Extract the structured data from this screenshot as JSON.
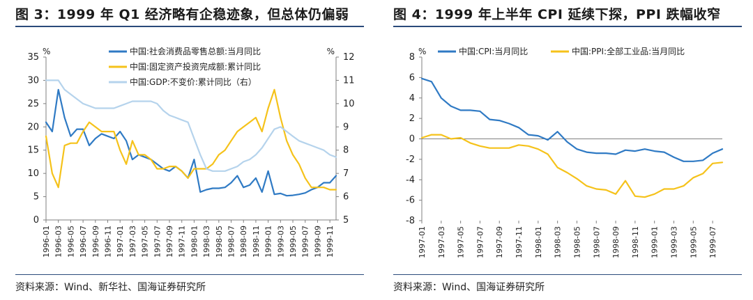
{
  "figures": {
    "left_title": "图 3：1999 年 Q1 经济略有企稳迹象，但总体仍偏弱",
    "right_title": "图 4：1999 年上半年 CPI 延续下探，PPI 跌幅收窄",
    "left_source": "资料来源：Wind、新华社、国海证券研究所",
    "right_source": "资料来源：Wind、国海证券研究所"
  },
  "colors": {
    "blue": "#2f7ac4",
    "yellow": "#f5c21a",
    "lightblue": "#b5d3ec",
    "axis": "#7f7f7f"
  },
  "chart_data": [
    {
      "type": "line",
      "title": "图 3：1999 年 Q1 经济略有企稳迹象，但总体仍偏弱",
      "xlabel": "",
      "y_unit_label": "%",
      "y2_unit_label": "%",
      "ylim": [
        0,
        35
      ],
      "yticks": [
        0,
        5,
        10,
        15,
        20,
        25,
        30,
        35
      ],
      "y2lim": [
        5,
        12
      ],
      "y2ticks": [
        5,
        6,
        7,
        8,
        9,
        10,
        11,
        12
      ],
      "x_range": [
        "1996-01",
        "1999-12"
      ],
      "x_ticks": [
        "1996-01",
        "1996-03",
        "1996-05",
        "1996-07",
        "1996-09",
        "1996-11",
        "1997-01",
        "1997-03",
        "1997-05",
        "1997-07",
        "1997-09",
        "1997-11",
        "1998-01",
        "1998-03",
        "1998-05",
        "1998-07",
        "1998-09",
        "1998-11",
        "1999-01",
        "1999-03",
        "1999-05",
        "1999-07",
        "1999-09",
        "1999-11"
      ],
      "legend_position": "top-left",
      "series": [
        {
          "name": "中国:社会消费品零售总额:当月同比",
          "axis": "left",
          "color": "#2f7ac4",
          "points": [
            [
              "1996-01",
              21
            ],
            [
              "1996-02",
              19
            ],
            [
              "1996-03",
              28
            ],
            [
              "1996-04",
              22
            ],
            [
              "1996-05",
              18
            ],
            [
              "1996-06",
              19.5
            ],
            [
              "1996-07",
              19.5
            ],
            [
              "1996-08",
              16
            ],
            [
              "1996-09",
              17.5
            ],
            [
              "1996-10",
              18.5
            ],
            [
              "1996-11",
              18
            ],
            [
              "1996-12",
              17.5
            ],
            [
              "1997-01",
              19
            ],
            [
              "1997-02",
              17
            ],
            [
              "1997-03",
              13
            ],
            [
              "1997-04",
              14
            ],
            [
              "1997-05",
              13.5
            ],
            [
              "1997-06",
              13
            ],
            [
              "1997-07",
              12
            ],
            [
              "1997-08",
              11
            ],
            [
              "1997-09",
              10.5
            ],
            [
              "1997-10",
              11.5
            ],
            [
              "1997-11",
              10.5
            ],
            [
              "1997-12",
              9
            ],
            [
              "1998-01",
              13
            ],
            [
              "1998-02",
              6
            ],
            [
              "1998-03",
              6.5
            ],
            [
              "1998-04",
              6.8
            ],
            [
              "1998-05",
              6.8
            ],
            [
              "1998-06",
              7
            ],
            [
              "1998-07",
              8
            ],
            [
              "1998-08",
              9.5
            ],
            [
              "1998-09",
              7
            ],
            [
              "1998-10",
              7.5
            ],
            [
              "1998-11",
              9
            ],
            [
              "1998-12",
              6
            ],
            [
              "1999-01",
              10.5
            ],
            [
              "1999-02",
              5.5
            ],
            [
              "1999-03",
              5.7
            ],
            [
              "1999-04",
              5.2
            ],
            [
              "1999-05",
              5.3
            ],
            [
              "1999-06",
              5.5
            ],
            [
              "1999-07",
              5.8
            ],
            [
              "1999-08",
              6.5
            ],
            [
              "1999-09",
              7
            ],
            [
              "1999-10",
              8
            ],
            [
              "1999-11",
              8
            ],
            [
              "1999-12",
              9.5
            ]
          ]
        },
        {
          "name": "中国:固定资产投资完成额:累计同比",
          "axis": "left",
          "color": "#f5c21a",
          "points": [
            [
              "1996-01",
              18
            ],
            [
              "1996-02",
              10
            ],
            [
              "1996-03",
              7
            ],
            [
              "1996-04",
              16
            ],
            [
              "1996-05",
              16.5
            ],
            [
              "1996-06",
              16.5
            ],
            [
              "1996-07",
              19
            ],
            [
              "1996-08",
              21
            ],
            [
              "1996-09",
              20
            ],
            [
              "1996-10",
              19
            ],
            [
              "1996-11",
              19
            ],
            [
              "1996-12",
              19
            ],
            [
              "1997-01",
              15
            ],
            [
              "1997-02",
              12
            ],
            [
              "1997-03",
              17
            ],
            [
              "1997-04",
              14
            ],
            [
              "1997-05",
              14
            ],
            [
              "1997-06",
              13
            ],
            [
              "1997-07",
              11
            ],
            [
              "1997-08",
              11
            ],
            [
              "1997-09",
              11.5
            ],
            [
              "1997-10",
              11.5
            ],
            [
              "1997-11",
              10.5
            ],
            [
              "1997-12",
              9
            ],
            [
              "1998-01",
              11
            ],
            [
              "1998-02",
              11
            ],
            [
              "1998-03",
              11
            ],
            [
              "1998-04",
              12
            ],
            [
              "1998-05",
              14
            ],
            [
              "1998-06",
              15
            ],
            [
              "1998-07",
              17
            ],
            [
              "1998-08",
              19
            ],
            [
              "1998-09",
              20
            ],
            [
              "1998-10",
              21
            ],
            [
              "1998-11",
              22
            ],
            [
              "1998-12",
              19
            ],
            [
              "1999-01",
              24
            ],
            [
              "1999-02",
              28
            ],
            [
              "1999-03",
              22
            ],
            [
              "1999-04",
              17
            ],
            [
              "1999-05",
              14
            ],
            [
              "1999-06",
              12
            ],
            [
              "1999-07",
              9
            ],
            [
              "1999-08",
              7
            ],
            [
              "1999-09",
              7
            ],
            [
              "1999-10",
              7
            ],
            [
              "1999-11",
              6.5
            ],
            [
              "1999-12",
              6.5
            ]
          ]
        },
        {
          "name": "中国:GDP:不变价:累计同比（右）",
          "axis": "right",
          "color": "#b5d3ec",
          "points": [
            [
              "1996-01",
              11
            ],
            [
              "1996-02",
              11
            ],
            [
              "1996-03",
              11
            ],
            [
              "1996-04",
              10.6
            ],
            [
              "1996-05",
              10.4
            ],
            [
              "1996-06",
              10.2
            ],
            [
              "1996-07",
              10
            ],
            [
              "1996-08",
              9.9
            ],
            [
              "1996-09",
              9.8
            ],
            [
              "1996-10",
              9.8
            ],
            [
              "1996-11",
              9.8
            ],
            [
              "1996-12",
              9.8
            ],
            [
              "1997-01",
              9.9
            ],
            [
              "1997-02",
              10
            ],
            [
              "1997-03",
              10.1
            ],
            [
              "1997-04",
              10.1
            ],
            [
              "1997-05",
              10.1
            ],
            [
              "1997-06",
              10.1
            ],
            [
              "1997-07",
              10
            ],
            [
              "1997-08",
              9.7
            ],
            [
              "1997-09",
              9.5
            ],
            [
              "1997-10",
              9.4
            ],
            [
              "1997-11",
              9.3
            ],
            [
              "1997-12",
              9.2
            ],
            [
              "1998-01",
              8.5
            ],
            [
              "1998-02",
              7.8
            ],
            [
              "1998-03",
              7.2
            ],
            [
              "1998-04",
              7.1
            ],
            [
              "1998-05",
              7.1
            ],
            [
              "1998-06",
              7.1
            ],
            [
              "1998-07",
              7.2
            ],
            [
              "1998-08",
              7.3
            ],
            [
              "1998-09",
              7.5
            ],
            [
              "1998-10",
              7.6
            ],
            [
              "1998-11",
              7.8
            ],
            [
              "1998-12",
              8.1
            ],
            [
              "1999-01",
              8.5
            ],
            [
              "1999-02",
              8.9
            ],
            [
              "1999-03",
              9
            ],
            [
              "1999-04",
              8.8
            ],
            [
              "1999-05",
              8.6
            ],
            [
              "1999-06",
              8.4
            ],
            [
              "1999-07",
              8.3
            ],
            [
              "1999-08",
              8.2
            ],
            [
              "1999-09",
              8.1
            ],
            [
              "1999-10",
              8
            ],
            [
              "1999-11",
              7.8
            ],
            [
              "1999-12",
              7.7
            ]
          ]
        }
      ]
    },
    {
      "type": "line",
      "title": "图 4：1999 年上半年 CPI 延续下探，PPI 跌幅收窄",
      "xlabel": "",
      "y_unit_label": "%",
      "ylim": [
        -8,
        8
      ],
      "yticks": [
        -8,
        -6,
        -4,
        -2,
        0,
        2,
        4,
        6,
        8
      ],
      "x_range": [
        "1997-01",
        "1999-08"
      ],
      "x_ticks": [
        "1997-01",
        "1997-03",
        "1997-05",
        "1997-07",
        "1997-09",
        "1997-11",
        "1998-01",
        "1998-03",
        "1998-05",
        "1998-07",
        "1998-09",
        "1998-11",
        "1999-01",
        "1999-03",
        "1999-05",
        "1999-07"
      ],
      "legend_position": "top",
      "series": [
        {
          "name": "中国:CPI:当月同比",
          "color": "#2f7ac4",
          "points": [
            [
              "1997-01",
              5.9
            ],
            [
              "1997-02",
              5.6
            ],
            [
              "1997-03",
              4
            ],
            [
              "1997-04",
              3.2
            ],
            [
              "1997-05",
              2.8
            ],
            [
              "1997-06",
              2.8
            ],
            [
              "1997-07",
              2.7
            ],
            [
              "1997-08",
              1.9
            ],
            [
              "1997-09",
              1.8
            ],
            [
              "1997-10",
              1.5
            ],
            [
              "1997-11",
              1.1
            ],
            [
              "1997-12",
              0.4
            ],
            [
              "1998-01",
              0.3
            ],
            [
              "1998-02",
              -0.1
            ],
            [
              "1998-03",
              0.7
            ],
            [
              "1998-04",
              -0.3
            ],
            [
              "1998-05",
              -1
            ],
            [
              "1998-06",
              -1.3
            ],
            [
              "1998-07",
              -1.4
            ],
            [
              "1998-08",
              -1.4
            ],
            [
              "1998-09",
              -1.5
            ],
            [
              "1998-10",
              -1.1
            ],
            [
              "1998-11",
              -1.2
            ],
            [
              "1998-12",
              -1
            ],
            [
              "1999-01",
              -1.2
            ],
            [
              "1999-02",
              -1.3
            ],
            [
              "1999-03",
              -1.8
            ],
            [
              "1999-04",
              -2.2
            ],
            [
              "1999-05",
              -2.2
            ],
            [
              "1999-06",
              -2.1
            ],
            [
              "1999-07",
              -1.4
            ],
            [
              "1999-08",
              -1
            ]
          ]
        },
        {
          "name": "中国:PPI:全部工业品:当月同比",
          "color": "#f5c21a",
          "points": [
            [
              "1997-01",
              0.1
            ],
            [
              "1997-02",
              0.4
            ],
            [
              "1997-03",
              0.4
            ],
            [
              "1997-04",
              0
            ],
            [
              "1997-05",
              0.1
            ],
            [
              "1997-06",
              -0.4
            ],
            [
              "1997-07",
              -0.7
            ],
            [
              "1997-08",
              -0.9
            ],
            [
              "1997-09",
              -0.9
            ],
            [
              "1997-10",
              -0.9
            ],
            [
              "1997-11",
              -0.6
            ],
            [
              "1997-12",
              -0.7
            ],
            [
              "1998-01",
              -1
            ],
            [
              "1998-02",
              -1.5
            ],
            [
              "1998-03",
              -2.8
            ],
            [
              "1998-04",
              -3.3
            ],
            [
              "1998-05",
              -3.9
            ],
            [
              "1998-06",
              -4.6
            ],
            [
              "1998-07",
              -4.9
            ],
            [
              "1998-08",
              -5
            ],
            [
              "1998-09",
              -5.4
            ],
            [
              "1998-10",
              -4.1
            ],
            [
              "1998-11",
              -5.6
            ],
            [
              "1998-12",
              -5.7
            ],
            [
              "1999-01",
              -5.4
            ],
            [
              "1999-02",
              -4.9
            ],
            [
              "1999-03",
              -4.9
            ],
            [
              "1999-04",
              -4.6
            ],
            [
              "1999-05",
              -3.8
            ],
            [
              "1999-06",
              -3.4
            ],
            [
              "1999-07",
              -2.4
            ],
            [
              "1999-08",
              -2.3
            ]
          ]
        }
      ]
    }
  ]
}
